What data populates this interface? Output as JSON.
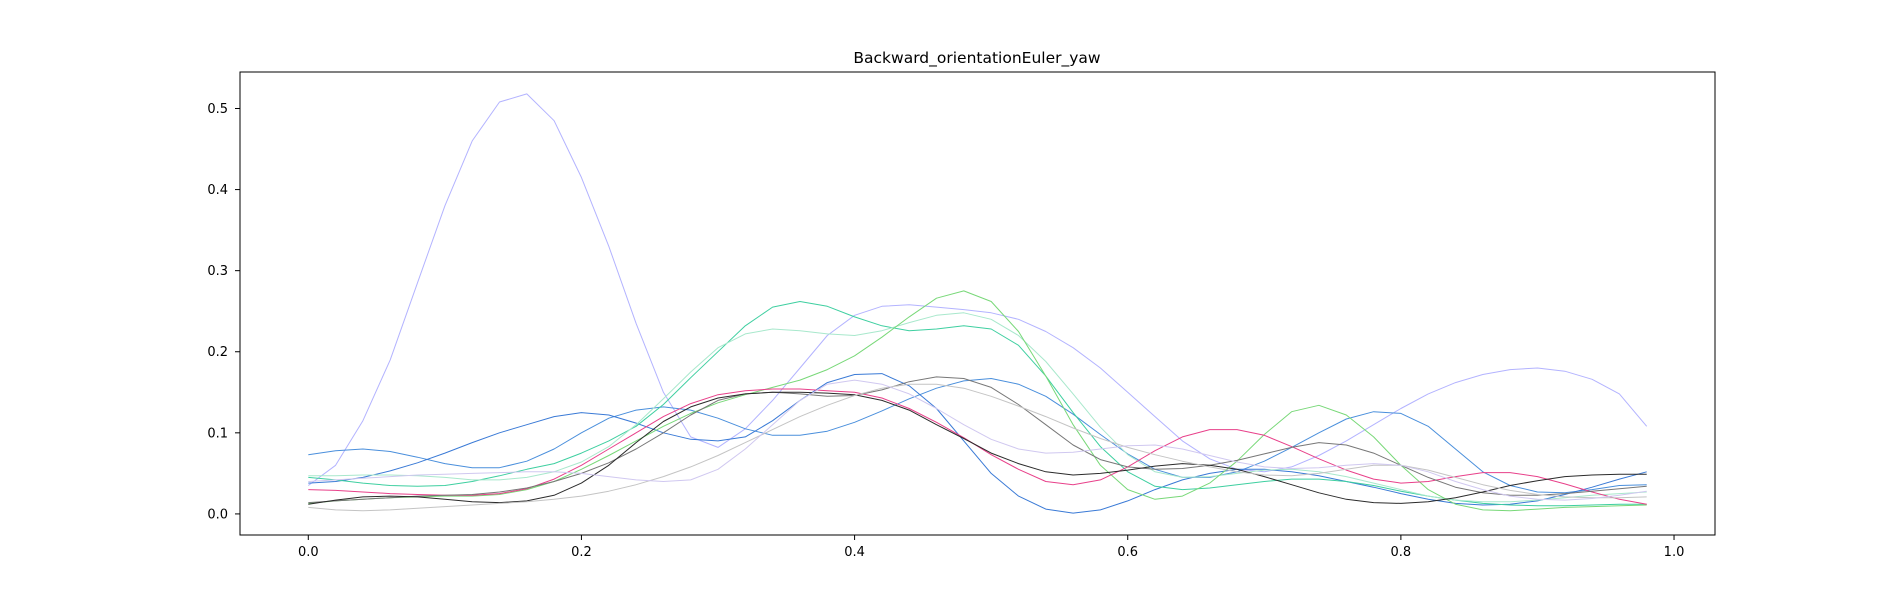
{
  "chart_data": {
    "type": "line",
    "title": "Backward_orientationEuler_yaw",
    "xlabel": "",
    "ylabel": "",
    "xlim": [
      -0.05,
      1.03
    ],
    "ylim": [
      -0.026,
      0.545
    ],
    "xticks": [
      0.0,
      0.2,
      0.4,
      0.6,
      0.8,
      1.0
    ],
    "xtick_labels": [
      "0.0",
      "0.2",
      "0.4",
      "0.6",
      "0.8",
      "1.0"
    ],
    "yticks": [
      0.0,
      0.1,
      0.2,
      0.3,
      0.4,
      0.5
    ],
    "ytick_labels": [
      "0.0",
      "0.1",
      "0.2",
      "0.3",
      "0.4",
      "0.5"
    ],
    "grid": false,
    "legend": "none",
    "x": [
      0.0,
      0.02,
      0.04,
      0.06,
      0.08,
      0.1,
      0.12,
      0.14,
      0.16,
      0.18,
      0.2,
      0.22,
      0.24,
      0.26,
      0.28,
      0.3,
      0.32,
      0.34,
      0.36,
      0.38,
      0.4,
      0.42,
      0.44,
      0.46,
      0.48,
      0.5,
      0.52,
      0.54,
      0.56,
      0.58,
      0.6,
      0.62,
      0.64,
      0.66,
      0.68,
      0.7,
      0.72,
      0.74,
      0.76,
      0.78,
      0.8,
      0.82,
      0.84,
      0.86,
      0.88,
      0.9,
      0.92,
      0.94,
      0.96,
      0.98
    ],
    "series": [
      {
        "color": "#b3b3ff",
        "values": [
          0.035,
          0.06,
          0.115,
          0.19,
          0.285,
          0.38,
          0.46,
          0.508,
          0.518,
          0.485,
          0.415,
          0.33,
          0.235,
          0.15,
          0.095,
          0.082,
          0.105,
          0.14,
          0.18,
          0.22,
          0.245,
          0.256,
          0.258,
          0.255,
          0.252,
          0.248,
          0.24,
          0.225,
          0.205,
          0.18,
          0.15,
          0.12,
          0.09,
          0.068,
          0.055,
          0.052,
          0.058,
          0.072,
          0.09,
          0.11,
          0.13,
          0.148,
          0.162,
          0.172,
          0.178,
          0.18,
          0.176,
          0.166,
          0.148,
          0.108
        ]
      },
      {
        "color": "#4a8fdc",
        "values": [
          0.073,
          0.078,
          0.08,
          0.077,
          0.07,
          0.062,
          0.057,
          0.057,
          0.065,
          0.08,
          0.1,
          0.118,
          0.128,
          0.132,
          0.128,
          0.118,
          0.105,
          0.097,
          0.097,
          0.102,
          0.113,
          0.127,
          0.142,
          0.155,
          0.164,
          0.167,
          0.16,
          0.145,
          0.123,
          0.098,
          0.074,
          0.055,
          0.045,
          0.045,
          0.052,
          0.065,
          0.082,
          0.1,
          0.117,
          0.126,
          0.124,
          0.108,
          0.08,
          0.052,
          0.035,
          0.027,
          0.026,
          0.03,
          0.035,
          0.036
        ]
      },
      {
        "color": "#3a7ad6",
        "values": [
          0.038,
          0.04,
          0.045,
          0.053,
          0.063,
          0.075,
          0.088,
          0.1,
          0.11,
          0.12,
          0.125,
          0.122,
          0.112,
          0.1,
          0.092,
          0.09,
          0.095,
          0.115,
          0.14,
          0.162,
          0.172,
          0.173,
          0.158,
          0.13,
          0.09,
          0.05,
          0.022,
          0.006,
          0.001,
          0.005,
          0.016,
          0.03,
          0.042,
          0.05,
          0.055,
          0.055,
          0.052,
          0.047,
          0.04,
          0.033,
          0.025,
          0.018,
          0.013,
          0.011,
          0.012,
          0.016,
          0.024,
          0.033,
          0.043,
          0.052
        ]
      },
      {
        "color": "#3ecfa0",
        "values": [
          0.045,
          0.042,
          0.038,
          0.035,
          0.034,
          0.035,
          0.04,
          0.047,
          0.055,
          0.062,
          0.075,
          0.09,
          0.108,
          0.135,
          0.168,
          0.2,
          0.232,
          0.255,
          0.262,
          0.256,
          0.243,
          0.232,
          0.226,
          0.228,
          0.232,
          0.228,
          0.208,
          0.17,
          0.125,
          0.083,
          0.052,
          0.034,
          0.03,
          0.032,
          0.036,
          0.04,
          0.043,
          0.043,
          0.04,
          0.035,
          0.028,
          0.022,
          0.017,
          0.013,
          0.011,
          0.01,
          0.01,
          0.011,
          0.012,
          0.012
        ]
      },
      {
        "color": "#a8e8cc",
        "values": [
          0.047,
          0.047,
          0.048,
          0.048,
          0.047,
          0.045,
          0.042,
          0.042,
          0.045,
          0.052,
          0.064,
          0.083,
          0.11,
          0.142,
          0.175,
          0.205,
          0.222,
          0.228,
          0.226,
          0.222,
          0.22,
          0.226,
          0.236,
          0.245,
          0.248,
          0.24,
          0.22,
          0.188,
          0.148,
          0.107,
          0.073,
          0.052,
          0.045,
          0.046,
          0.05,
          0.054,
          0.055,
          0.052,
          0.046,
          0.038,
          0.03,
          0.022,
          0.017,
          0.015,
          0.015,
          0.017,
          0.02,
          0.023,
          0.025,
          0.027
        ]
      },
      {
        "color": "#78d878",
        "values": [
          0.013,
          0.016,
          0.018,
          0.02,
          0.021,
          0.022,
          0.022,
          0.024,
          0.03,
          0.04,
          0.055,
          0.072,
          0.09,
          0.108,
          0.124,
          0.137,
          0.147,
          0.156,
          0.165,
          0.178,
          0.195,
          0.218,
          0.243,
          0.266,
          0.275,
          0.262,
          0.225,
          0.17,
          0.11,
          0.06,
          0.03,
          0.018,
          0.022,
          0.038,
          0.065,
          0.098,
          0.126,
          0.134,
          0.122,
          0.095,
          0.06,
          0.03,
          0.012,
          0.005,
          0.004,
          0.006,
          0.008,
          0.009,
          0.01,
          0.011
        ]
      },
      {
        "color": "#e8408a",
        "values": [
          0.03,
          0.029,
          0.027,
          0.025,
          0.024,
          0.023,
          0.023,
          0.025,
          0.031,
          0.043,
          0.06,
          0.08,
          0.1,
          0.12,
          0.136,
          0.147,
          0.152,
          0.154,
          0.154,
          0.152,
          0.15,
          0.143,
          0.13,
          0.113,
          0.094,
          0.073,
          0.055,
          0.04,
          0.036,
          0.042,
          0.058,
          0.078,
          0.095,
          0.104,
          0.104,
          0.097,
          0.083,
          0.068,
          0.054,
          0.043,
          0.038,
          0.04,
          0.046,
          0.051,
          0.051,
          0.046,
          0.037,
          0.027,
          0.018,
          0.012
        ]
      },
      {
        "color": "#777777",
        "values": [
          0.014,
          0.016,
          0.018,
          0.02,
          0.022,
          0.023,
          0.024,
          0.027,
          0.032,
          0.04,
          0.05,
          0.063,
          0.08,
          0.1,
          0.122,
          0.14,
          0.148,
          0.15,
          0.148,
          0.145,
          0.146,
          0.153,
          0.163,
          0.169,
          0.167,
          0.156,
          0.135,
          0.11,
          0.085,
          0.067,
          0.058,
          0.055,
          0.056,
          0.06,
          0.066,
          0.074,
          0.082,
          0.088,
          0.085,
          0.075,
          0.06,
          0.045,
          0.033,
          0.026,
          0.023,
          0.023,
          0.025,
          0.028,
          0.031,
          0.034
        ]
      },
      {
        "color": "#2b2b2b",
        "values": [
          0.012,
          0.017,
          0.021,
          0.022,
          0.021,
          0.018,
          0.015,
          0.014,
          0.016,
          0.023,
          0.038,
          0.06,
          0.088,
          0.114,
          0.132,
          0.143,
          0.148,
          0.15,
          0.15,
          0.149,
          0.147,
          0.14,
          0.128,
          0.11,
          0.093,
          0.075,
          0.062,
          0.052,
          0.048,
          0.05,
          0.054,
          0.059,
          0.062,
          0.06,
          0.055,
          0.046,
          0.036,
          0.026,
          0.018,
          0.014,
          0.013,
          0.015,
          0.02,
          0.027,
          0.035,
          0.041,
          0.046,
          0.048,
          0.049,
          0.049
        ]
      },
      {
        "color": "#c4c4c4",
        "values": [
          0.008,
          0.005,
          0.004,
          0.005,
          0.007,
          0.009,
          0.011,
          0.013,
          0.015,
          0.018,
          0.022,
          0.028,
          0.036,
          0.046,
          0.058,
          0.072,
          0.088,
          0.104,
          0.12,
          0.134,
          0.146,
          0.155,
          0.16,
          0.16,
          0.155,
          0.145,
          0.133,
          0.12,
          0.106,
          0.093,
          0.082,
          0.073,
          0.065,
          0.058,
          0.052,
          0.048,
          0.047,
          0.05,
          0.055,
          0.06,
          0.06,
          0.054,
          0.045,
          0.036,
          0.029,
          0.024,
          0.021,
          0.02,
          0.02,
          0.021
        ]
      },
      {
        "color": "#d0c8f0",
        "values": [
          0.04,
          0.042,
          0.044,
          0.046,
          0.048,
          0.049,
          0.05,
          0.051,
          0.052,
          0.052,
          0.05,
          0.046,
          0.042,
          0.04,
          0.042,
          0.055,
          0.08,
          0.11,
          0.14,
          0.16,
          0.165,
          0.16,
          0.148,
          0.13,
          0.11,
          0.092,
          0.08,
          0.075,
          0.076,
          0.08,
          0.084,
          0.085,
          0.08,
          0.072,
          0.064,
          0.058,
          0.056,
          0.057,
          0.06,
          0.062,
          0.06,
          0.052,
          0.04,
          0.03,
          0.022,
          0.018,
          0.017,
          0.019,
          0.023,
          0.028
        ]
      }
    ]
  }
}
